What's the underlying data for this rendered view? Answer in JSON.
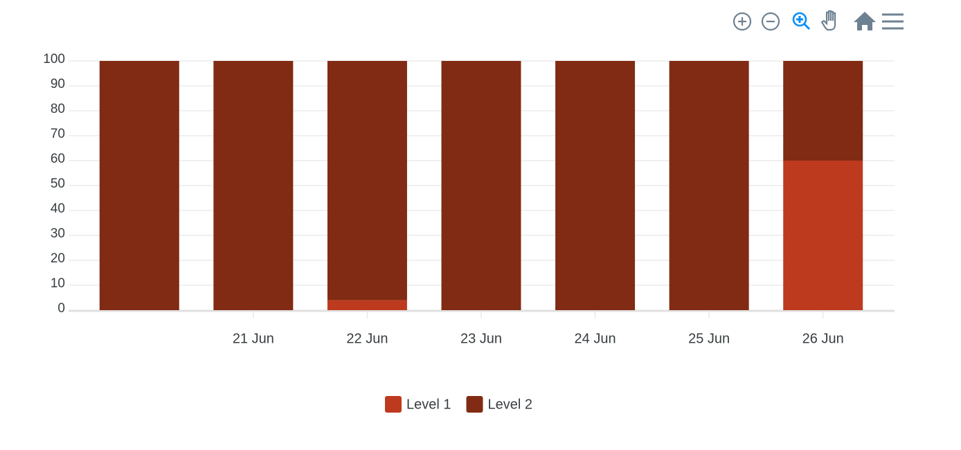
{
  "chart_data": {
    "type": "stacked_bar",
    "categories": [
      null,
      "21 Jun",
      "22 Jun",
      "23 Jun",
      "24 Jun",
      "25 Jun",
      "26 Jun"
    ],
    "series": [
      {
        "name": "Level 1",
        "color": "#bd3a1f",
        "values": [
          0,
          0,
          4,
          0,
          0,
          0,
          60
        ]
      },
      {
        "name": "Level 2",
        "color": "#812b14",
        "values": [
          100,
          100,
          96,
          100,
          100,
          100,
          40
        ]
      }
    ],
    "ylim": [
      0,
      100
    ],
    "yticks": [
      0,
      10,
      20,
      30,
      40,
      50,
      60,
      70,
      80,
      90,
      100
    ],
    "grid": true,
    "legend": "bottom"
  }
}
